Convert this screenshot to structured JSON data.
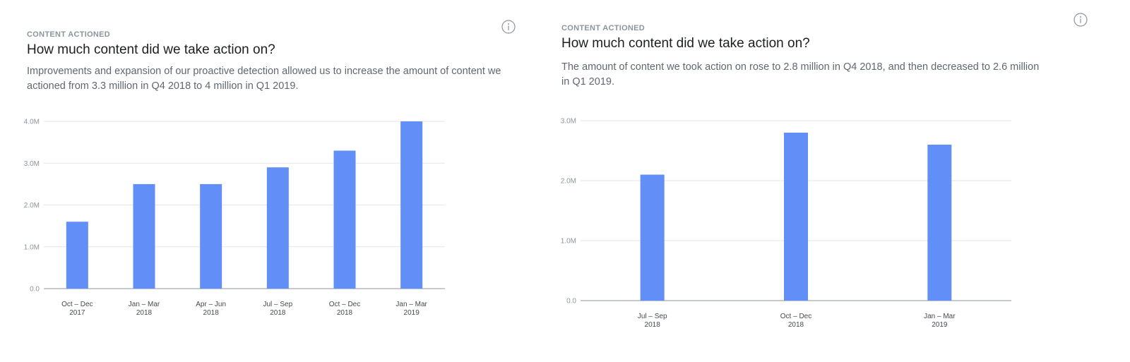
{
  "panels": [
    {
      "eyebrow": "CONTENT ACTIONED",
      "title": "How much content did we take action on?",
      "description": "Improvements and expansion of our proactive detection allowed us to increase the amount of content we actioned from 3.3 million in Q4 2018 to 4 million in Q1 2019.",
      "info_icon": "info-icon",
      "chart_data": {
        "type": "bar",
        "categories": [
          [
            "Oct – Dec",
            "2017"
          ],
          [
            "Jan – Mar",
            "2018"
          ],
          [
            "Apr – Jun",
            "2018"
          ],
          [
            "Jul – Sep",
            "2018"
          ],
          [
            "Oct – Dec",
            "2018"
          ],
          [
            "Jan – Mar",
            "2019"
          ]
        ],
        "values": [
          1.6,
          2.5,
          2.5,
          2.9,
          3.3,
          4.0
        ],
        "unit": "M",
        "ylim": [
          0,
          4
        ],
        "yticks": [
          "0.0",
          "1.0M",
          "2.0M",
          "3.0M",
          "4.0M"
        ],
        "grid": true,
        "bar_color": "#628ef7"
      }
    },
    {
      "eyebrow": "CONTENT ACTIONED",
      "title": "How much content did we take action on?",
      "description": "The amount of content we took action on rose to 2.8 million in Q4 2018, and then decreased to 2.6 million in Q1 2019.",
      "info_icon": "info-icon",
      "chart_data": {
        "type": "bar",
        "categories": [
          [
            "Jul – Sep",
            "2018"
          ],
          [
            "Oct – Dec",
            "2018"
          ],
          [
            "Jan – Mar",
            "2019"
          ]
        ],
        "values": [
          2.1,
          2.8,
          2.6
        ],
        "unit": "M",
        "ylim": [
          0,
          3
        ],
        "yticks": [
          "0.0",
          "1.0M",
          "2.0M",
          "3.0M"
        ],
        "grid": true,
        "bar_color": "#628ef7"
      }
    }
  ]
}
